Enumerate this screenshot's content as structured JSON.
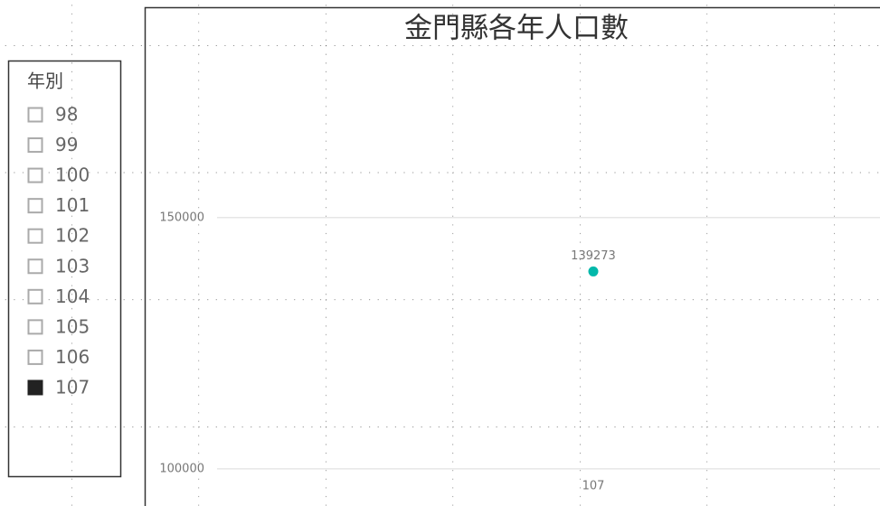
{
  "slicer": {
    "title": "年別",
    "items": [
      "98",
      "99",
      "100",
      "101",
      "102",
      "103",
      "104",
      "105",
      "106",
      "107"
    ],
    "selected": [
      false,
      false,
      false,
      false,
      false,
      false,
      false,
      false,
      false,
      true
    ]
  },
  "chart_data": {
    "type": "scatter",
    "title": "金門縣各年人口數",
    "categories": [
      "107"
    ],
    "values": [
      139273
    ],
    "color": "#01b8aa",
    "ylim": [
      98900,
      182500
    ],
    "yticks": [
      100000,
      150000
    ],
    "grid": true
  }
}
